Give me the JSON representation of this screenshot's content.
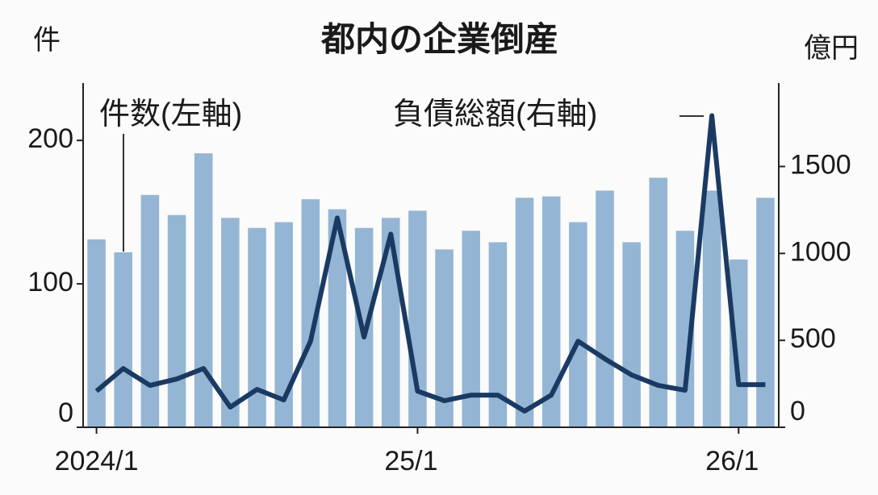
{
  "chart_data": {
    "type": "bar_line",
    "title": "都内の企業倒産",
    "y_label": "件",
    "y2_label": "億円",
    "categories": [
      "2024/1",
      null,
      null,
      null,
      null,
      null,
      null,
      null,
      null,
      null,
      null,
      null,
      "25/1",
      null,
      null,
      null,
      null,
      null,
      null,
      null,
      null,
      null,
      null,
      null,
      "26/1",
      null
    ],
    "series": [
      {
        "name": "件数(左軸)",
        "type": "bar",
        "color": "#94b6d4",
        "values": [
          131,
          122,
          162,
          148,
          191,
          146,
          139,
          143,
          159,
          152,
          139,
          146,
          151,
          124,
          137,
          129,
          160,
          161,
          143,
          165,
          129,
          174,
          137,
          165,
          117,
          160
        ]
      },
      {
        "name": "負債総額(右軸)",
        "type": "line",
        "axis": "y2",
        "color": "#1b3a63",
        "values": [
          208,
          338,
          241,
          278,
          338,
          116,
          218,
          157,
          495,
          1204,
          519,
          1111,
          208,
          153,
          185,
          185,
          93,
          185,
          495,
          394,
          301,
          241,
          213,
          1792,
          245,
          245
        ]
      }
    ],
    "ylim": [
      0,
      240
    ],
    "yticks": [
      0,
      100,
      200
    ],
    "y2lim": [
      0,
      1980
    ],
    "y2ticks": [
      0,
      500,
      1000,
      1500
    ]
  }
}
